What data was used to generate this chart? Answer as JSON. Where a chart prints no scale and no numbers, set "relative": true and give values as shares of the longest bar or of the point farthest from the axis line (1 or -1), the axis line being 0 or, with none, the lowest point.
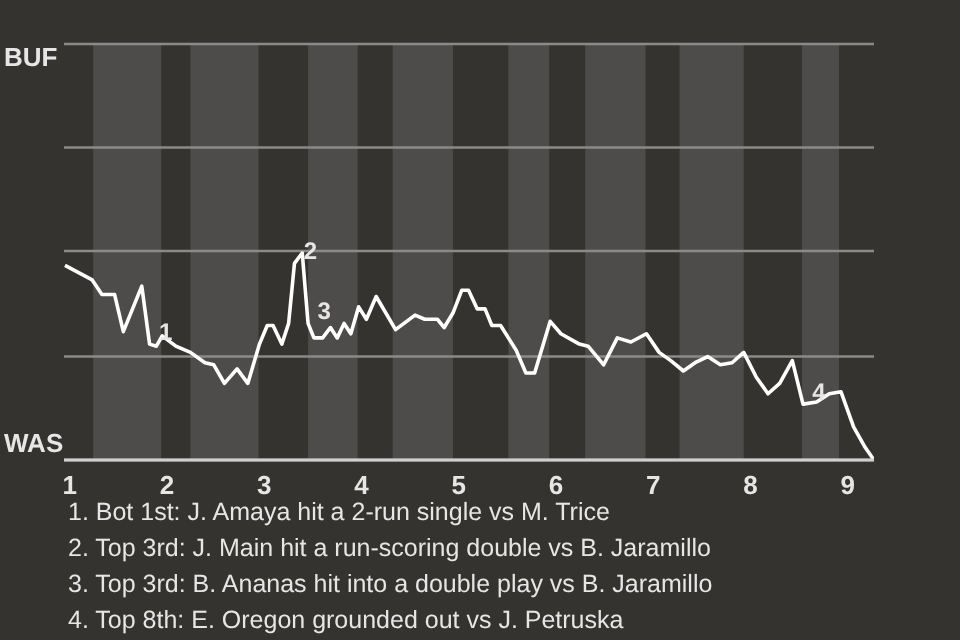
{
  "chart_data": {
    "type": "line",
    "x": [
      0.95,
      1.23,
      1.33,
      1.46,
      1.55,
      1.74,
      1.82,
      1.89,
      1.95,
      2.09,
      2.24,
      2.39,
      2.48,
      2.59,
      2.72,
      2.83,
      2.95,
      3.03,
      3.09,
      3.18,
      3.25,
      3.31,
      3.39,
      3.45,
      3.51,
      3.6,
      3.68,
      3.75,
      3.82,
      3.89,
      3.97,
      4.05,
      4.15,
      4.35,
      4.55,
      4.65,
      4.78,
      4.85,
      4.94,
      5.03,
      5.1,
      5.19,
      5.27,
      5.34,
      5.43,
      5.59,
      5.69,
      5.78,
      5.94,
      6.05,
      6.24,
      6.33,
      6.49,
      6.63,
      6.77,
      6.93,
      7.06,
      7.18,
      7.31,
      7.43,
      7.56,
      7.69,
      7.81,
      7.93,
      8.06,
      8.18,
      8.3,
      8.43,
      8.54,
      8.68,
      8.81,
      8.93,
      9.06,
      9.18,
      9.27
    ],
    "series": [
      {
        "color": "#ffffff",
        "values": [
          0.94,
          0.87,
          0.8,
          0.8,
          0.62,
          0.84,
          0.56,
          0.55,
          0.6,
          0.55,
          0.52,
          0.47,
          0.46,
          0.37,
          0.44,
          0.37,
          0.56,
          0.65,
          0.65,
          0.56,
          0.66,
          0.95,
          1,
          0.66,
          0.59,
          0.59,
          0.64,
          0.59,
          0.66,
          0.61,
          0.74,
          0.68,
          0.79,
          0.63,
          0.7,
          0.68,
          0.68,
          0.64,
          0.71,
          0.82,
          0.82,
          0.73,
          0.73,
          0.65,
          0.65,
          0.53,
          0.42,
          0.42,
          0.67,
          0.61,
          0.56,
          0.55,
          0.46,
          0.59,
          0.57,
          0.61,
          0.52,
          0.48,
          0.43,
          0.47,
          0.5,
          0.46,
          0.47,
          0.52,
          0.4,
          0.32,
          0.37,
          0.48,
          0.27,
          0.28,
          0.32,
          0.33,
          0.16,
          0.06,
          0
        ]
      }
    ],
    "relative": true,
    "xlim": [
      0.94,
      9.27
    ],
    "xticks": [
      1,
      2,
      3,
      4,
      5,
      6,
      7,
      8,
      9
    ],
    "marker": "none",
    "ref_lines": [
      {
        "axis": "y",
        "value": 0.5,
        "color": "#8a8a8a"
      },
      {
        "axis": "y",
        "value": 1.01,
        "color": "#8a8a8a"
      },
      {
        "axis": "y",
        "value": 1.51,
        "color": "#8a8a8a"
      },
      {
        "axis": "y",
        "value": 2.01,
        "color": "#8a8a8a",
        "label": "BUF"
      },
      {
        "axis": "y",
        "value": 0,
        "color": "#cfcfcf",
        "label": "WAS"
      }
    ],
    "bands": [
      {
        "axis": "x",
        "from": 1.24,
        "to": 1.94,
        "color": "#4d4c4a"
      },
      {
        "axis": "x",
        "from": 2.24,
        "to": 2.94,
        "color": "#4d4c4a"
      },
      {
        "axis": "x",
        "from": 3.45,
        "to": 3.96,
        "color": "#4d4c4a"
      },
      {
        "axis": "x",
        "from": 4.32,
        "to": 4.94,
        "color": "#4d4c4a"
      },
      {
        "axis": "x",
        "from": 5.51,
        "to": 5.93,
        "color": "#4d4c4a"
      },
      {
        "axis": "x",
        "from": 6.3,
        "to": 6.92,
        "color": "#4d4c4a"
      },
      {
        "axis": "x",
        "from": 7.27,
        "to": 7.93,
        "color": "#4d4c4a"
      },
      {
        "axis": "x",
        "from": 8.53,
        "to": 8.91,
        "color": "#4d4c4a"
      }
    ],
    "annotations": [
      {
        "text": "1",
        "x": 1.82,
        "y": 0.56
      },
      {
        "text": "2",
        "x": 3.31,
        "y": 0.95
      },
      {
        "text": "3",
        "x": 3.45,
        "y": 0.66
      },
      {
        "text": "4",
        "x": 8.54,
        "y": 0.27
      },
      "1. Bot 1st: J. Amaya hit a 2-run single vs M. Trice",
      "2. Top 3rd: J. Main hit a run-scoring double vs B. Jaramillo",
      "3. Top 3rd: B. Ananas hit into a double play vs B. Jaramillo",
      "4. Top 8th: E. Oregon grounded out vs J. Petruska"
    ]
  }
}
